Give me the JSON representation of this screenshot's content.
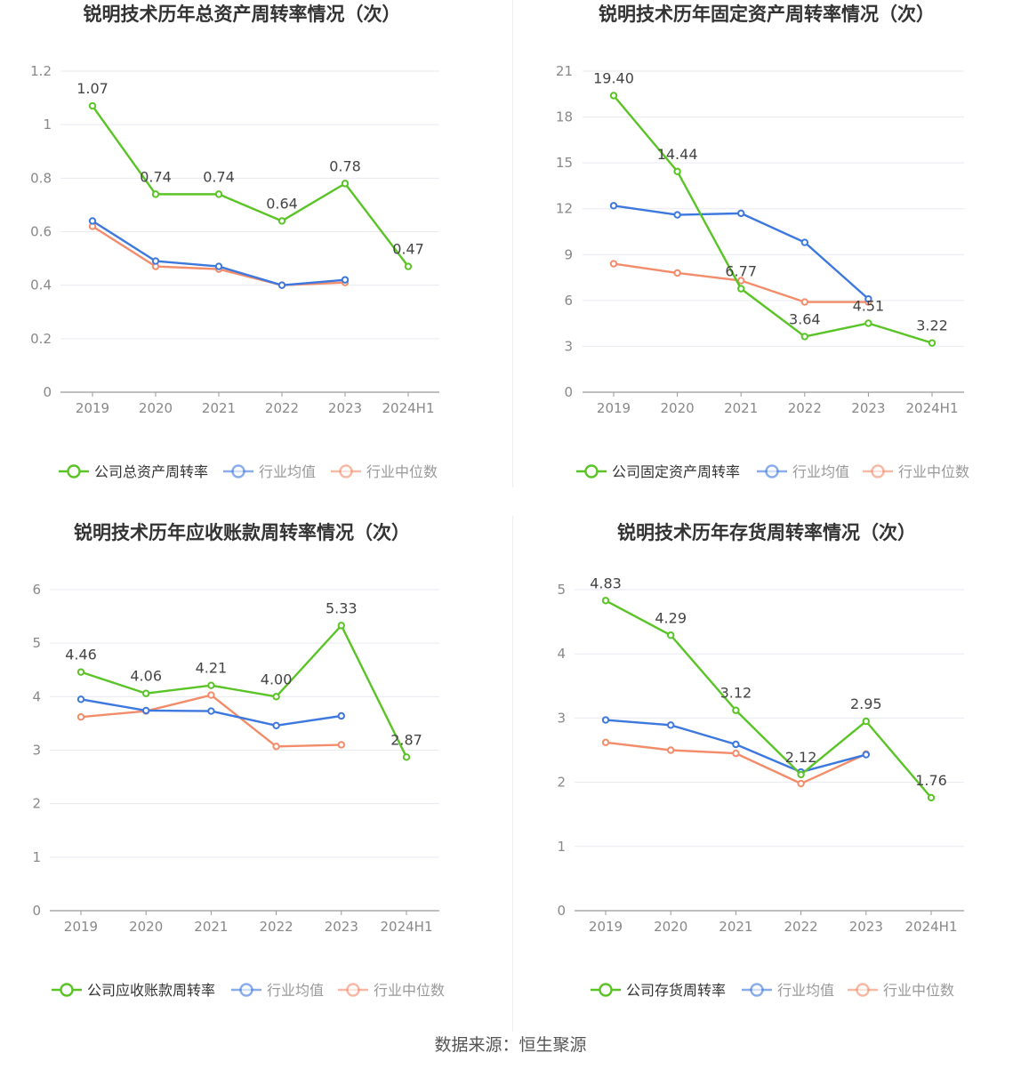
{
  "colors": {
    "company": "#5ac427",
    "avg": "#3d78de",
    "median": "#f38c6a",
    "grid": "#e8eaf0",
    "axis": "#999999",
    "tick": "#888888",
    "title": "#333333"
  },
  "x_labels": [
    "2019",
    "2020",
    "2021",
    "2022",
    "2023",
    "2024H1"
  ],
  "legend_common": {
    "avg": "行业均值",
    "median": "行业中位数"
  },
  "source": "数据来源：恒生聚源",
  "chart_data": [
    {
      "type": "line",
      "title": "锐明技术历年总资产周转率情况（次）",
      "categories": [
        "2019",
        "2020",
        "2021",
        "2022",
        "2023",
        "2024H1"
      ],
      "ylim": [
        0,
        1.2
      ],
      "yticks": [
        0,
        0.2,
        0.4,
        0.6,
        0.8,
        1,
        1.2
      ],
      "ytick_labels": [
        "0",
        "0.2",
        "0.4",
        "0.6",
        "0.8",
        "1",
        "1.2"
      ],
      "series": [
        {
          "name": "公司总资产周转率",
          "key": "company",
          "values": [
            1.07,
            0.74,
            0.74,
            0.64,
            0.78,
            0.47
          ],
          "labels": [
            "1.07",
            "0.74",
            "0.74",
            "0.64",
            "0.78",
            "0.47"
          ]
        },
        {
          "name": "行业均值",
          "key": "avg",
          "values": [
            0.64,
            0.49,
            0.47,
            0.4,
            0.42,
            null
          ]
        },
        {
          "name": "行业中位数",
          "key": "median",
          "values": [
            0.62,
            0.47,
            0.46,
            0.4,
            0.41,
            null
          ]
        }
      ]
    },
    {
      "type": "line",
      "title": "锐明技术历年固定资产周转率情况（次）",
      "categories": [
        "2019",
        "2020",
        "2021",
        "2022",
        "2023",
        "2024H1"
      ],
      "ylim": [
        0,
        21
      ],
      "yticks": [
        0,
        3,
        6,
        9,
        12,
        15,
        18,
        21
      ],
      "ytick_labels": [
        "0",
        "3",
        "6",
        "9",
        "12",
        "15",
        "18",
        "21"
      ],
      "series": [
        {
          "name": "公司固定资产周转率",
          "key": "company",
          "values": [
            19.4,
            14.44,
            6.77,
            3.64,
            4.51,
            3.22
          ],
          "labels": [
            "19.40",
            "14.44",
            "6.77",
            "3.64",
            "4.51",
            "3.22"
          ]
        },
        {
          "name": "行业均值",
          "key": "avg",
          "values": [
            12.2,
            11.6,
            11.7,
            9.8,
            6.1,
            null
          ]
        },
        {
          "name": "行业中位数",
          "key": "median",
          "values": [
            8.4,
            7.8,
            7.3,
            5.9,
            5.9,
            null
          ]
        }
      ]
    },
    {
      "type": "line",
      "title": "锐明技术历年应收账款周转率情况（次）",
      "categories": [
        "2019",
        "2020",
        "2021",
        "2022",
        "2023",
        "2024H1"
      ],
      "ylim": [
        0,
        6
      ],
      "yticks": [
        0,
        1,
        2,
        3,
        4,
        5,
        6
      ],
      "ytick_labels": [
        "0",
        "1",
        "2",
        "3",
        "4",
        "5",
        "6"
      ],
      "series": [
        {
          "name": "公司应收账款周转率",
          "key": "company",
          "values": [
            4.46,
            4.06,
            4.21,
            4.0,
            5.33,
            2.87
          ],
          "labels": [
            "4.46",
            "4.06",
            "4.21",
            "4.00",
            "5.33",
            "2.87"
          ]
        },
        {
          "name": "行业均值",
          "key": "avg",
          "values": [
            3.95,
            3.74,
            3.73,
            3.46,
            3.64,
            null
          ]
        },
        {
          "name": "行业中位数",
          "key": "median",
          "values": [
            3.62,
            3.73,
            4.03,
            3.07,
            3.1,
            null
          ]
        }
      ]
    },
    {
      "type": "line",
      "title": "锐明技术历年存货周转率情况（次）",
      "categories": [
        "2019",
        "2020",
        "2021",
        "2022",
        "2023",
        "2024H1"
      ],
      "ylim": [
        0,
        5
      ],
      "yticks": [
        0,
        1,
        2,
        3,
        4,
        5
      ],
      "ytick_labels": [
        "0",
        "1",
        "2",
        "3",
        "4",
        "5"
      ],
      "series": [
        {
          "name": "公司存货周转率",
          "key": "company",
          "values": [
            4.83,
            4.29,
            3.12,
            2.12,
            2.95,
            1.76
          ],
          "labels": [
            "4.83",
            "4.29",
            "3.12",
            "2.12",
            "2.95",
            "1.76"
          ]
        },
        {
          "name": "行业均值",
          "key": "avg",
          "values": [
            2.97,
            2.89,
            2.59,
            2.16,
            2.43,
            null
          ]
        },
        {
          "name": "行业中位数",
          "key": "median",
          "values": [
            2.62,
            2.5,
            2.45,
            1.98,
            2.44,
            null
          ]
        }
      ]
    }
  ]
}
